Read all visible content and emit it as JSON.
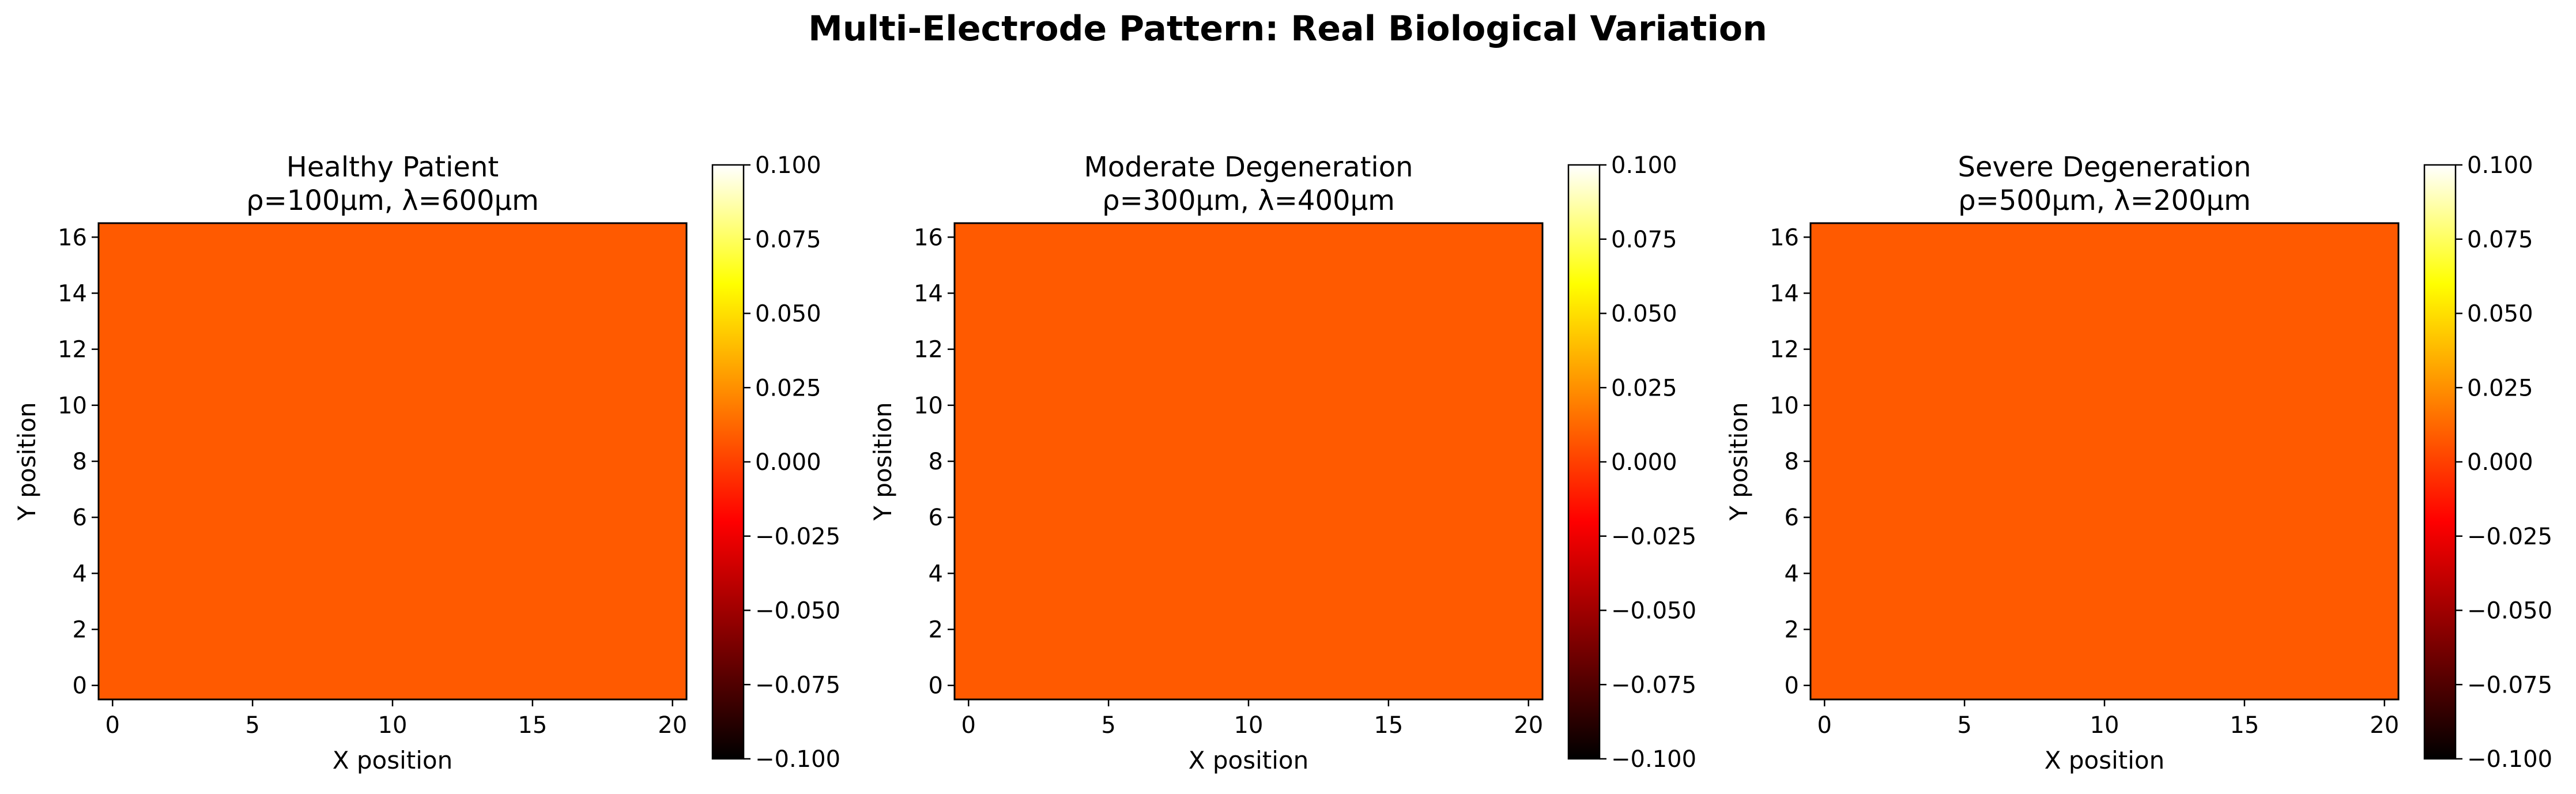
{
  "figure_title": "Multi-Electrode Pattern: Real Biological Variation",
  "colors": {
    "field": "#ff5a00",
    "colormap": [
      "#000000",
      "#800000",
      "#ff0000",
      "#ff8000",
      "#ffff00",
      "#ffffff"
    ]
  },
  "chart_data": [
    {
      "type": "heatmap",
      "title_line1": "Healthy Patient",
      "title_line2": "ρ=100μm, λ=600μm",
      "xlabel": "X position",
      "ylabel": "Y position",
      "xlim": [
        -0.5,
        20.5
      ],
      "ylim": [
        -0.5,
        16.5
      ],
      "xticks": [
        0,
        5,
        10,
        15,
        20
      ],
      "yticks": [
        0,
        2,
        4,
        6,
        8,
        10,
        12,
        14,
        16
      ],
      "value": 0.0,
      "colorbar": {
        "colormap": "hot",
        "vmin": -0.1,
        "vmax": 0.1,
        "ticks": [
          "0.100",
          "0.075",
          "0.050",
          "0.025",
          "0.000",
          "−0.025",
          "−0.050",
          "−0.075",
          "−0.100"
        ]
      }
    },
    {
      "type": "heatmap",
      "title_line1": "Moderate Degeneration",
      "title_line2": "ρ=300μm, λ=400μm",
      "xlabel": "X position",
      "ylabel": "Y position",
      "xlim": [
        -0.5,
        20.5
      ],
      "ylim": [
        -0.5,
        16.5
      ],
      "xticks": [
        0,
        5,
        10,
        15,
        20
      ],
      "yticks": [
        0,
        2,
        4,
        6,
        8,
        10,
        12,
        14,
        16
      ],
      "value": 0.0,
      "colorbar": {
        "colormap": "hot",
        "vmin": -0.1,
        "vmax": 0.1,
        "ticks": [
          "0.100",
          "0.075",
          "0.050",
          "0.025",
          "0.000",
          "−0.025",
          "−0.050",
          "−0.075",
          "−0.100"
        ]
      }
    },
    {
      "type": "heatmap",
      "title_line1": "Severe Degeneration",
      "title_line2": "ρ=500μm, λ=200μm",
      "xlabel": "X position",
      "ylabel": "Y position",
      "xlim": [
        -0.5,
        20.5
      ],
      "ylim": [
        -0.5,
        16.5
      ],
      "xticks": [
        0,
        5,
        10,
        15,
        20
      ],
      "yticks": [
        0,
        2,
        4,
        6,
        8,
        10,
        12,
        14,
        16
      ],
      "value": 0.0,
      "colorbar": {
        "colormap": "hot",
        "vmin": -0.1,
        "vmax": 0.1,
        "ticks": [
          "0.100",
          "0.075",
          "0.050",
          "0.025",
          "0.000",
          "−0.025",
          "−0.050",
          "−0.075",
          "−0.100"
        ]
      }
    }
  ]
}
